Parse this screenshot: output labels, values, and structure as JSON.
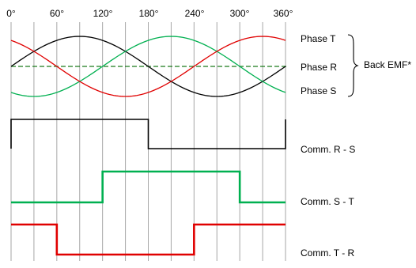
{
  "degree_labels": [
    "0°",
    "60°",
    "120°",
    "180°",
    "240°",
    "300°",
    "360°"
  ],
  "grid_step_degrees": 30,
  "phases": [
    {
      "label": "Phase T",
      "color": "#000000"
    },
    {
      "label": "Phase R",
      "color": "#1a7a1a"
    },
    {
      "label": "Phase S",
      "color": "#00b050"
    }
  ],
  "phase_red_color": "#e00000",
  "back_emf_label": "Back EMF*",
  "commutations": [
    {
      "label": "Comm. R - S",
      "color": "#000000",
      "high_start": 0,
      "high_end": 180
    },
    {
      "label": "Comm. S - T",
      "color": "#00b050",
      "high_start": 120,
      "high_end": 300
    },
    {
      "label": "Comm. T - R",
      "color": "#e00000",
      "high_start": 240,
      "high_end": 60
    }
  ]
}
